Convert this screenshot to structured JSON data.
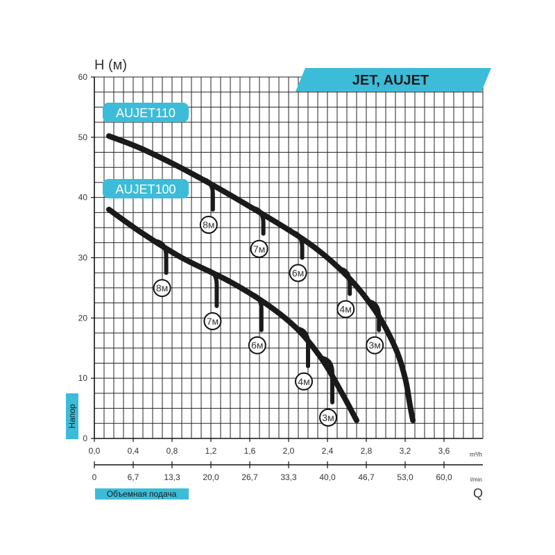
{
  "header": {
    "banner": "JET, AUJET",
    "y_axis_title": "H (м)",
    "y_side_label": "Напор",
    "x2_side_label": "Объемная подача",
    "x2_axis_symbol": "Q",
    "unit_m3h": "m³/h",
    "unit_lmin": "l/min"
  },
  "colors": {
    "accent": "#3cbcd8",
    "curve": "#1a1a1a",
    "grid": "#222222"
  },
  "chart_data": {
    "type": "line",
    "xlim": [
      0,
      4.0
    ],
    "ylim": [
      0,
      60
    ],
    "x_ticks": [
      "0,0",
      "0,4",
      "0,8",
      "1,2",
      "1,6",
      "2,0",
      "2,4",
      "2,8",
      "3,2",
      "3,6"
    ],
    "x_tick_values": [
      0,
      0.4,
      0.8,
      1.2,
      1.6,
      2.0,
      2.4,
      2.8,
      3.2,
      3.6
    ],
    "y_ticks": [
      "0",
      "10",
      "20",
      "30",
      "40",
      "50",
      "60"
    ],
    "y_tick_values": [
      0,
      10,
      20,
      30,
      40,
      50,
      60
    ],
    "x2_ticks": [
      "0",
      "6,7",
      "13,3",
      "20,0",
      "26,7",
      "33,3",
      "40,0",
      "46,7",
      "53,0",
      "60,0"
    ],
    "x2_tick_values": [
      0,
      0.4,
      0.8,
      1.2,
      1.6,
      2.0,
      2.4,
      2.8,
      3.2,
      3.6
    ],
    "grid": true,
    "series": [
      {
        "name": "AUJET110",
        "x": [
          0.15,
          0.5,
          1.0,
          1.6,
          2.2,
          2.6,
          2.9,
          3.1,
          3.2,
          3.25,
          3.28
        ],
        "y": [
          50.2,
          48.0,
          44.0,
          38.5,
          32.5,
          27.0,
          21.0,
          15.0,
          10.0,
          5.5,
          3.0
        ],
        "branches": [
          {
            "label": "8м",
            "x": 1.22,
            "y": 38.0
          },
          {
            "label": "7м",
            "x": 1.74,
            "y": 34.0
          },
          {
            "label": "6м",
            "x": 2.14,
            "y": 30.0
          },
          {
            "label": "4м",
            "x": 2.63,
            "y": 24.0
          },
          {
            "label": "3м",
            "x": 2.93,
            "y": 18.0
          }
        ]
      },
      {
        "name": "AUJET100",
        "x": [
          0.15,
          0.5,
          0.9,
          1.4,
          1.8,
          2.1,
          2.35,
          2.55,
          2.7
        ],
        "y": [
          38.0,
          34.0,
          30.0,
          26.0,
          22.0,
          18.0,
          13.0,
          7.5,
          3.0
        ],
        "branches": [
          {
            "label": "8м",
            "x": 0.74,
            "y": 27.5
          },
          {
            "label": "7м",
            "x": 1.26,
            "y": 22.0
          },
          {
            "label": "6м",
            "x": 1.72,
            "y": 18.0
          },
          {
            "label": "4м",
            "x": 2.2,
            "y": 12.0
          },
          {
            "label": "3м",
            "x": 2.45,
            "y": 6.0
          }
        ]
      }
    ]
  }
}
